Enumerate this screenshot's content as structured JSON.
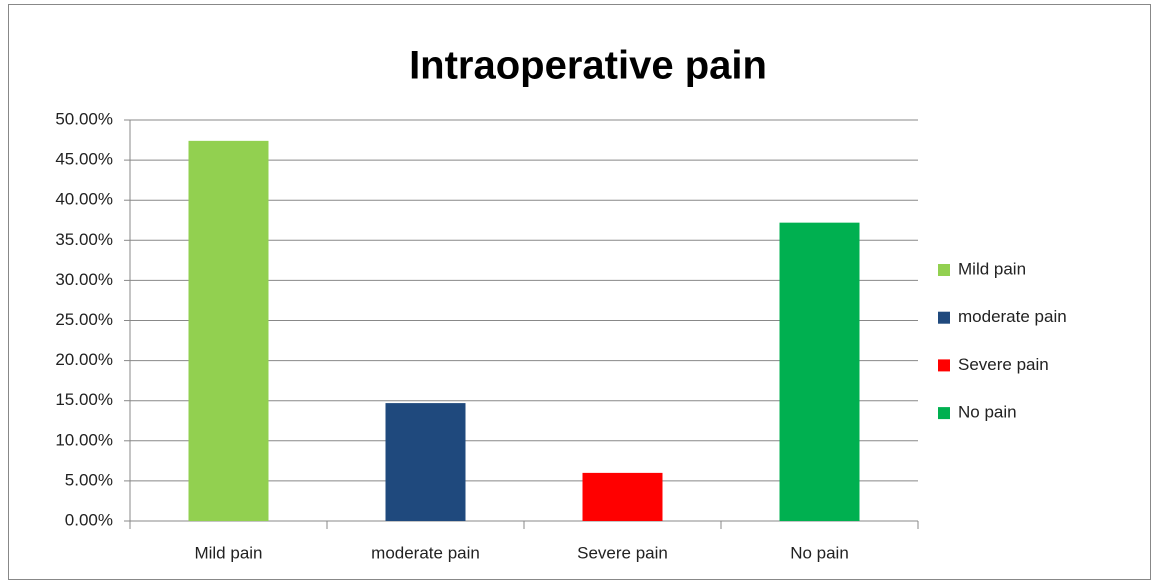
{
  "chart_data": {
    "type": "bar",
    "title": "Intraoperative pain",
    "categories": [
      "Mild pain",
      "moderate pain",
      "Severe pain",
      "No pain"
    ],
    "values": [
      47.4,
      14.7,
      6.0,
      37.2
    ],
    "colors": [
      "#92d050",
      "#1f497d",
      "#ff0000",
      "#00b050"
    ],
    "ylim": [
      0,
      50
    ],
    "yticks": [
      {
        "value": 0,
        "label": "0.00%"
      },
      {
        "value": 5,
        "label": "5.00%"
      },
      {
        "value": 10,
        "label": "10.00%"
      },
      {
        "value": 15,
        "label": "15.00%"
      },
      {
        "value": 20,
        "label": "20.00%"
      },
      {
        "value": 25,
        "label": "25.00%"
      },
      {
        "value": 30,
        "label": "30.00%"
      },
      {
        "value": 35,
        "label": "35.00%"
      },
      {
        "value": 40,
        "label": "40.00%"
      },
      {
        "value": 45,
        "label": "45.00%"
      },
      {
        "value": 50,
        "label": "50.00%"
      }
    ],
    "grid": true,
    "legend": "right"
  }
}
